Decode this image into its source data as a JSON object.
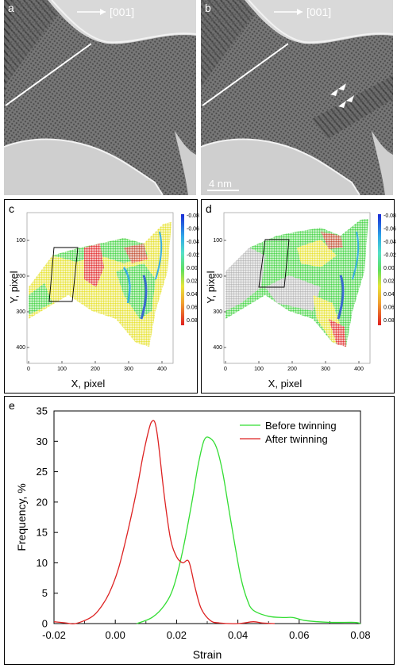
{
  "panels": {
    "a": {
      "label": "a",
      "direction": "[001]"
    },
    "b": {
      "label": "b",
      "direction": "[001]",
      "scale_bar": "4 nm"
    },
    "c": {
      "label": "c",
      "xlabel": "X, pixel",
      "ylabel": "Y, pixel",
      "xticks": [
        "0",
        "100",
        "200",
        "300",
        "400"
      ],
      "yticks": [
        "100",
        "200",
        "300",
        "400"
      ],
      "colorbar": [
        "-0.08",
        "-0.06",
        "-0.04",
        "-0.02",
        "0.00",
        "0.02",
        "0.04",
        "0.06",
        "0.08"
      ]
    },
    "d": {
      "label": "d",
      "xlabel": "X, pixel",
      "ylabel": "Y, pixel",
      "xticks": [
        "0",
        "100",
        "200",
        "300",
        "400"
      ],
      "yticks": [
        "100",
        "200",
        "300",
        "400"
      ],
      "colorbar": [
        "-0.08",
        "-0.06",
        "-0.04",
        "-0.02",
        "0.00",
        "0.02",
        "0.04",
        "0.06",
        "0.08"
      ]
    },
    "e": {
      "label": "e"
    }
  },
  "colors": {
    "before": "#33dd33",
    "after": "#dd2222"
  },
  "chart_data": {
    "type": "line",
    "xlabel": "Strain",
    "ylabel": "Frequency, %",
    "xlim": [
      -0.02,
      0.08
    ],
    "ylim": [
      0,
      35
    ],
    "xticks": [
      "-0.02",
      "0.00",
      "0.02",
      "0.04",
      "0.06",
      "0.08"
    ],
    "yticks": [
      "0",
      "5",
      "10",
      "15",
      "20",
      "25",
      "30",
      "35"
    ],
    "legend_position": "top-right",
    "series": [
      {
        "name": "Before twinning",
        "color": "#33dd33",
        "x": [
          0.007,
          0.012,
          0.016,
          0.019,
          0.022,
          0.025,
          0.027,
          0.029,
          0.031,
          0.033,
          0.035,
          0.037,
          0.039,
          0.041,
          0.043,
          0.045,
          0.05,
          0.055,
          0.058,
          0.062,
          0.07,
          0.078,
          0.08
        ],
        "y": [
          0,
          1,
          3,
          6,
          12,
          20,
          26,
          30.2,
          30.5,
          29,
          25,
          19,
          13,
          7.5,
          4,
          2.2,
          1.2,
          1,
          1,
          0.5,
          0.2,
          0.2,
          0
        ]
      },
      {
        "name": "After twinning",
        "color": "#dd2222",
        "x": [
          -0.02,
          -0.016,
          -0.013,
          -0.008,
          -0.005,
          -0.002,
          0.001,
          0.004,
          0.007,
          0.009,
          0.011,
          0.012,
          0.013,
          0.014,
          0.016,
          0.018,
          0.02,
          0.022,
          0.024,
          0.026,
          0.028,
          0.031,
          0.034,
          0.04,
          0.045,
          0.048,
          0.052
        ],
        "y": [
          0.3,
          0.1,
          0,
          1,
          2.5,
          5,
          9,
          15,
          22,
          27.5,
          32,
          33.3,
          33,
          30,
          21,
          14,
          11,
          10,
          10.2,
          6,
          2.5,
          0.5,
          0.1,
          0,
          0.3,
          0.1,
          0
        ]
      }
    ]
  }
}
